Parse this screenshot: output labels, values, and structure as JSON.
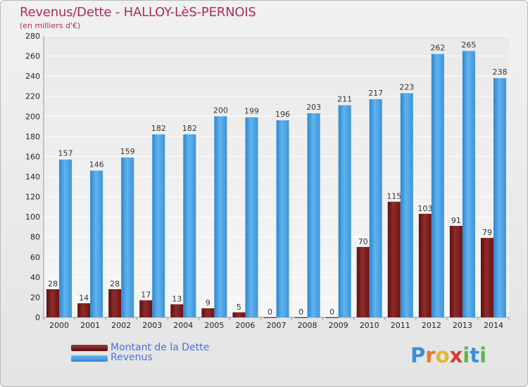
{
  "header": {
    "title": "Revenus/Dette - HALLOY-LèS-PERNOIS",
    "subtitle": "(en milliers d'€)"
  },
  "legend": {
    "items": [
      {
        "label": "Montant de la Dette",
        "color": "#7a1c1c"
      },
      {
        "label": "Revenus",
        "color": "#4aa3e6"
      }
    ]
  },
  "brand": {
    "letters": [
      {
        "ch": "P",
        "color": "#3b8fd8"
      },
      {
        "ch": "r",
        "color": "#e8792a"
      },
      {
        "ch": "o",
        "color": "#e8b82a"
      },
      {
        "ch": "x",
        "color": "#d83a3a"
      },
      {
        "ch": "i",
        "color": "#5bb84a"
      },
      {
        "ch": "t",
        "color": "#3b8fd8"
      },
      {
        "ch": "i",
        "color": "#5bb84a"
      }
    ]
  },
  "chart_data": {
    "type": "bar",
    "title": "Revenus/Dette - HALLOY-LèS-PERNOIS",
    "ylabel": "(en milliers d'€)",
    "categories": [
      "2000",
      "2001",
      "2002",
      "2003",
      "2004",
      "2005",
      "2006",
      "2007",
      "2008",
      "2009",
      "2010",
      "2011",
      "2012",
      "2013",
      "2014"
    ],
    "series": [
      {
        "name": "Montant de la Dette",
        "color": "#7a1c1c",
        "values": [
          28,
          14,
          28,
          17,
          13,
          9,
          5,
          0,
          0,
          0,
          70,
          115,
          103,
          91,
          79
        ]
      },
      {
        "name": "Revenus",
        "color": "#4aa3e6",
        "values": [
          157,
          146,
          159,
          182,
          182,
          200,
          199,
          196,
          203,
          211,
          217,
          223,
          262,
          265,
          238
        ]
      }
    ],
    "ylim": [
      0,
      280
    ],
    "yticks": [
      0,
      20,
      40,
      60,
      80,
      100,
      120,
      140,
      160,
      180,
      200,
      220,
      240,
      260,
      280
    ],
    "grid": true,
    "legend": "bottom-left"
  }
}
